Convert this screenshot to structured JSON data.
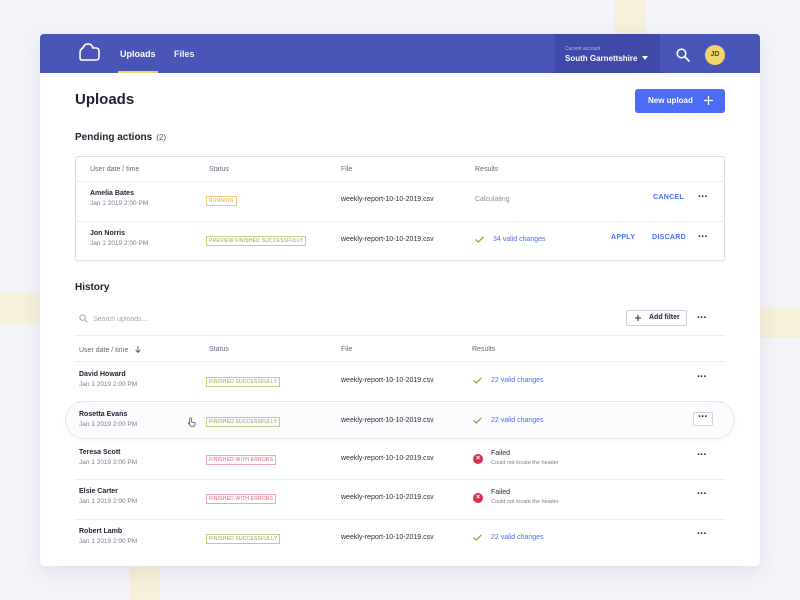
{
  "nav": {
    "tabs": [
      {
        "label": "Uploads",
        "active": true
      },
      {
        "label": "Files",
        "active": false
      }
    ],
    "account_label": "Current account",
    "account_name": "South Garnettshire",
    "avatar_initials": "JD"
  },
  "page": {
    "title": "Uploads",
    "new_upload_label": "New upload"
  },
  "pending": {
    "title": "Pending actions",
    "count": "(2)",
    "columns": [
      "User date / time",
      "Status",
      "File",
      "Results"
    ],
    "rows": [
      {
        "name": "Amelia Bates",
        "date": "Jan 1 2019 2:00 PM",
        "status": "RUNNING",
        "file": "weekly-report-10-10-2019.csv",
        "result": "Calculating",
        "actions": [
          "CANCEL"
        ]
      },
      {
        "name": "Jon Norris",
        "date": "Jan 1 2019 2:00 PM",
        "status": "PREVIEW FINISHED SUCCESSFULLY",
        "file": "weekly-report-10-10-2019.csv",
        "result": "34 valid changes",
        "actions": [
          "APPLY",
          "DISCARD"
        ]
      }
    ]
  },
  "history": {
    "title": "History",
    "search_placeholder": "Search uploads...",
    "add_filter_label": "Add filter",
    "columns": [
      "User date / time",
      "Status",
      "File",
      "Results"
    ],
    "rows": [
      {
        "name": "David Howard",
        "date": "Jan 1 2019 2:00 PM",
        "status": "FINISHED SUCCESSFULLY",
        "file": "weekly-report-10-10-2019.csv",
        "result": "22 valid changes"
      },
      {
        "name": "Rosetta Evans",
        "date": "Jan 1 2019 2:00 PM",
        "status": "FINISHED SUCCESSFULLY",
        "file": "weekly-report-10-10-2019.csv",
        "result": "22 valid changes"
      },
      {
        "name": "Teresa Scott",
        "date": "Jan 1 2019 2:00 PM",
        "status": "FINISHED WITH ERRORS",
        "file": "weekly-report-10-10-2019.csv",
        "result": "Failed",
        "result_sub": "Could not locate the header"
      },
      {
        "name": "Elsie Carter",
        "date": "Jan 1 2019 2:00 PM",
        "status": "FINISHED WITH ERRORS",
        "file": "weekly-report-10-10-2019.csv",
        "result": "Failed",
        "result_sub": "Could not locate the header"
      },
      {
        "name": "Robert Lamb",
        "date": "Jan 1 2019 2:00 PM",
        "status": "FINISHED SUCCESSFULLY",
        "file": "weekly-report-10-10-2019.csv",
        "result": "22 valid changes"
      }
    ]
  },
  "colors": {
    "brand": "#4a55b8",
    "accent": "#4a6cf7",
    "highlight": "#f2d56d",
    "success": "#8ea94a",
    "running": "#e3a33a",
    "error": "#d6304f"
  },
  "icons": [
    "cloud-logo-icon",
    "search-icon",
    "chevron-down-icon",
    "plus-icon",
    "check-icon",
    "error-icon",
    "more-icon",
    "sort-down-icon",
    "pointer-cursor-icon"
  ]
}
